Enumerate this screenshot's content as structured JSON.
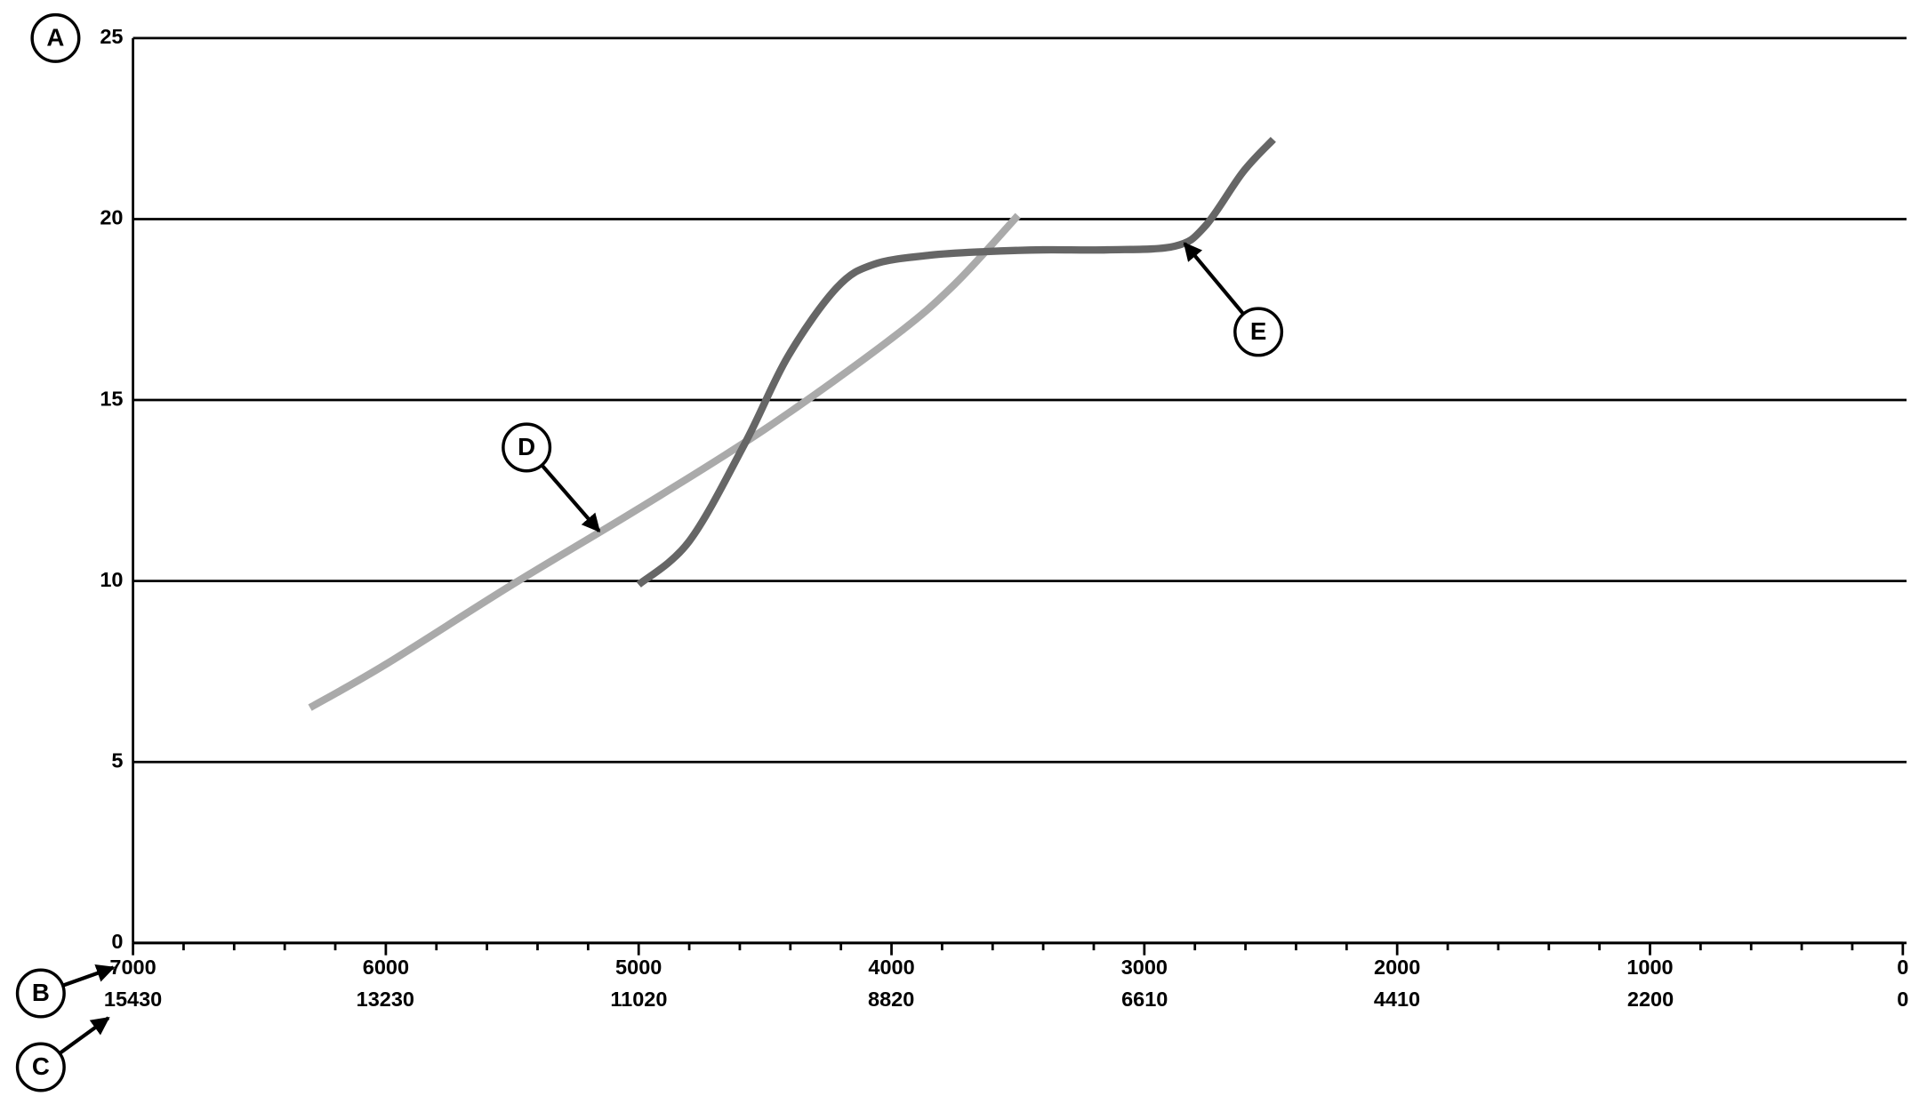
{
  "chart_data": {
    "type": "line",
    "annotations": [
      "A",
      "B",
      "C"
    ],
    "xlim": [
      7000,
      0
    ],
    "xticks": [
      7000,
      6000,
      5000,
      4000,
      3000,
      2000,
      1000,
      0
    ],
    "xminorticks": [
      6800,
      6600,
      6400,
      6200,
      5800,
      5600,
      5400,
      5200,
      4800,
      4600,
      4400,
      4200,
      3800,
      3600,
      3400,
      3200,
      2800,
      2600,
      2400,
      2200,
      1800,
      1600,
      1400,
      1200,
      800,
      600,
      400,
      200
    ],
    "x2lim": [
      15430,
      0
    ],
    "x2ticks": [
      15430,
      13230,
      11020,
      8820,
      6610,
      4410,
      2200,
      0
    ],
    "ylim": [
      0,
      25
    ],
    "yticks": [
      0,
      5,
      10,
      15,
      20,
      25
    ],
    "grid": true,
    "series": [
      {
        "name": "D",
        "color": "#aaaaaa",
        "x": [
          6300,
          6000,
          5500,
          5000,
          4500,
          4000,
          3750,
          3500
        ],
        "values": [
          6.5,
          7.7,
          9.9,
          12.0,
          14.2,
          16.7,
          18.2,
          20.1
        ]
      },
      {
        "name": "E",
        "color": "#666666",
        "x": [
          5000,
          4800,
          4580,
          4410,
          4217,
          4070,
          3850,
          3633,
          3400,
          3147,
          2880,
          2760,
          2610,
          2490
        ],
        "values": [
          9.9,
          11.1,
          13.8,
          16.2,
          18.1,
          18.75,
          19.0,
          19.1,
          19.15,
          19.15,
          19.25,
          19.8,
          21.3,
          22.2
        ]
      }
    ]
  }
}
